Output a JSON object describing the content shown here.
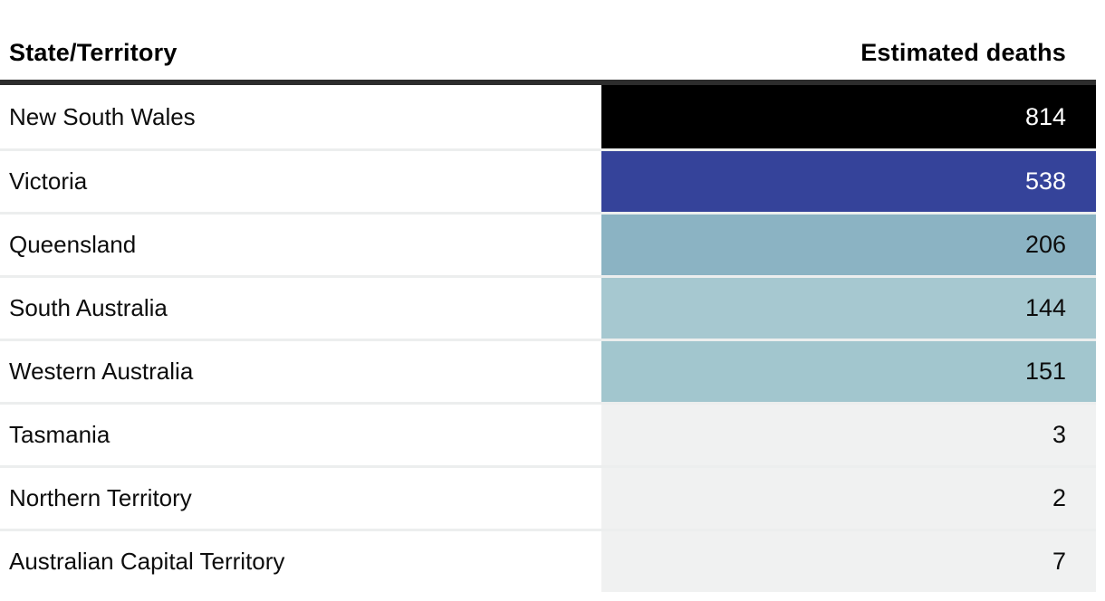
{
  "table": {
    "columns": {
      "state": "State/Territory",
      "deaths": "Estimated deaths"
    },
    "rows": [
      {
        "label": "New South Wales",
        "value": "814",
        "bg": "#000000",
        "fg": "#ffffff"
      },
      {
        "label": "Victoria",
        "value": "538",
        "bg": "#35439a",
        "fg": "#ffffff"
      },
      {
        "label": "Queensland",
        "value": "206",
        "bg": "#8bb3c3",
        "fg": "#0d0d0d"
      },
      {
        "label": "South Australia",
        "value": "144",
        "bg": "#a6c8d0",
        "fg": "#0d0d0d"
      },
      {
        "label": "Western Australia",
        "value": "151",
        "bg": "#a2c6ce",
        "fg": "#0d0d0d"
      },
      {
        "label": "Tasmania",
        "value": "3",
        "bg": "#f0f1f1",
        "fg": "#0d0d0d"
      },
      {
        "label": "Northern Territory",
        "value": "2",
        "bg": "#f0f1f1",
        "fg": "#0d0d0d"
      },
      {
        "label": "Australian Capital Territory",
        "value": "7",
        "bg": "#f0f1f1",
        "fg": "#0d0d0d"
      }
    ]
  },
  "colors": {
    "header_rule": "#2d2d2d",
    "row_divider": "#eceeee",
    "page_background": "#ffffff"
  },
  "chart_data": {
    "type": "table",
    "title": "",
    "columns": [
      "State/Territory",
      "Estimated deaths"
    ],
    "categories": [
      "New South Wales",
      "Victoria",
      "Queensland",
      "South Australia",
      "Western Australia",
      "Tasmania",
      "Northern Territory",
      "Australian Capital Territory"
    ],
    "values": [
      814,
      538,
      206,
      144,
      151,
      3,
      2,
      7
    ],
    "cell_shading": "sequential color scale on value column: black (max) → indigo → steel blue → light teal → light grey (min)",
    "cell_colors": [
      "#000000",
      "#35439a",
      "#8bb3c3",
      "#a6c8d0",
      "#a2c6ce",
      "#f0f1f1",
      "#f0f1f1",
      "#f0f1f1"
    ],
    "value_alignment": "right",
    "legend": "none",
    "grid": "light horizontal row dividers"
  }
}
